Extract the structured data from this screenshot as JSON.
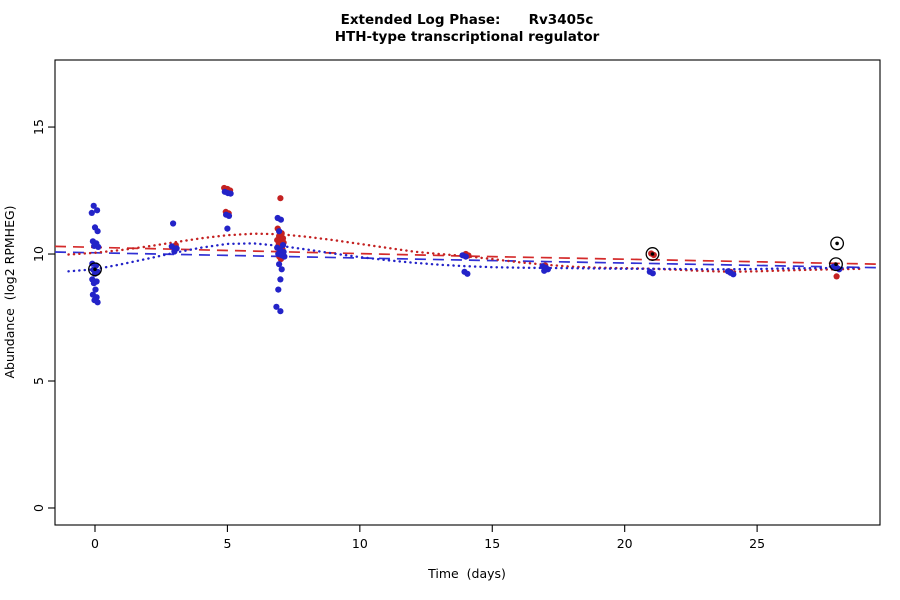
{
  "chart_data": {
    "type": "scatter",
    "title": "Extended Log Phase:      Rv3405c",
    "subtitle": "HTH-type transcriptional regulator",
    "xlabel": "Time  (days)",
    "ylabel": "Abundance  (log2 RPMHEG)",
    "xlim": [
      -1.51,
      29.64
    ],
    "ylim": [
      -0.67,
      17.64
    ],
    "xticks": [
      0,
      5,
      10,
      15,
      20,
      25
    ],
    "yticks": [
      0,
      5,
      10,
      15
    ],
    "grid": false,
    "legend": "none",
    "colors": {
      "red": "#C42121",
      "blue": "#2323C8",
      "outlier": "#000000"
    },
    "series": [
      {
        "name": "red",
        "color": "#C42121",
        "points": [
          [
            3.05,
            10.35
          ],
          [
            4.88,
            12.6
          ],
          [
            5.0,
            12.56
          ],
          [
            5.1,
            12.5
          ],
          [
            4.94,
            11.66
          ],
          [
            5.05,
            11.6
          ],
          [
            7.0,
            12.2
          ],
          [
            6.9,
            11.0
          ],
          [
            7.05,
            10.82
          ],
          [
            6.95,
            10.7
          ],
          [
            7.1,
            10.62
          ],
          [
            6.88,
            10.55
          ],
          [
            7.0,
            10.5
          ],
          [
            7.12,
            10.45
          ],
          [
            6.94,
            10.38
          ],
          [
            7.04,
            10.3
          ],
          [
            6.9,
            10.24
          ],
          [
            7.08,
            10.18
          ],
          [
            6.96,
            9.9
          ],
          [
            7.02,
            9.8
          ],
          [
            14.0,
            10.0
          ],
          [
            14.1,
            9.94
          ],
          [
            17.0,
            9.55
          ],
          [
            21.0,
            10.02
          ],
          [
            21.1,
            9.96
          ],
          [
            24.0,
            9.3
          ],
          [
            28.0,
            9.12
          ],
          [
            27.95,
            9.56
          ]
        ]
      },
      {
        "name": "blue",
        "color": "#2323C8",
        "points": [
          [
            -0.05,
            11.9
          ],
          [
            0.08,
            11.72
          ],
          [
            -0.12,
            11.62
          ],
          [
            0.0,
            11.05
          ],
          [
            0.1,
            10.9
          ],
          [
            -0.08,
            10.5
          ],
          [
            0.05,
            10.42
          ],
          [
            -0.03,
            10.32
          ],
          [
            0.12,
            10.28
          ],
          [
            -0.1,
            9.62
          ],
          [
            0.04,
            9.55
          ],
          [
            -0.06,
            9.38
          ],
          [
            0.1,
            9.3
          ],
          [
            0.0,
            9.22
          ],
          [
            -0.1,
            9.0
          ],
          [
            0.06,
            8.92
          ],
          [
            -0.04,
            8.85
          ],
          [
            0.02,
            8.6
          ],
          [
            -0.08,
            8.4
          ],
          [
            0.06,
            8.3
          ],
          [
            -0.02,
            8.18
          ],
          [
            0.1,
            8.1
          ],
          [
            2.95,
            11.2
          ],
          [
            2.9,
            10.3
          ],
          [
            3.08,
            10.22
          ],
          [
            3.0,
            10.1
          ],
          [
            4.9,
            12.45
          ],
          [
            5.02,
            12.4
          ],
          [
            5.12,
            12.38
          ],
          [
            4.95,
            11.55
          ],
          [
            5.06,
            11.5
          ],
          [
            5.0,
            11.0
          ],
          [
            6.9,
            11.42
          ],
          [
            7.02,
            11.35
          ],
          [
            6.95,
            10.9
          ],
          [
            7.1,
            10.35
          ],
          [
            6.88,
            10.25
          ],
          [
            7.0,
            10.15
          ],
          [
            7.12,
            10.08
          ],
          [
            6.92,
            10.0
          ],
          [
            7.05,
            9.95
          ],
          [
            7.15,
            9.9
          ],
          [
            6.95,
            9.6
          ],
          [
            7.05,
            9.4
          ],
          [
            7.0,
            9.0
          ],
          [
            6.92,
            8.6
          ],
          [
            6.85,
            7.92
          ],
          [
            7.0,
            7.75
          ],
          [
            13.88,
            9.95
          ],
          [
            14.0,
            9.9
          ],
          [
            13.95,
            9.3
          ],
          [
            14.06,
            9.22
          ],
          [
            16.9,
            9.52
          ],
          [
            17.02,
            9.46
          ],
          [
            17.1,
            9.4
          ],
          [
            16.96,
            9.34
          ],
          [
            20.95,
            9.3
          ],
          [
            21.06,
            9.24
          ],
          [
            23.9,
            9.32
          ],
          [
            24.0,
            9.26
          ],
          [
            24.1,
            9.2
          ],
          [
            27.88,
            9.5
          ],
          [
            28.0,
            9.46
          ],
          [
            28.1,
            9.4
          ]
        ]
      }
    ],
    "outlier_markers": {
      "color": "#000000",
      "points": [
        [
          0.0,
          9.4
        ],
        [
          21.05,
          10.0
        ],
        [
          28.02,
          10.42
        ],
        [
          27.98,
          9.6
        ]
      ]
    },
    "trend_lines": [
      {
        "name": "red-linear",
        "color": "#D42A2A",
        "style": "longdash",
        "points": [
          [
            -1.51,
            10.3
          ],
          [
            14.0,
            9.92
          ],
          [
            29.64,
            9.6
          ]
        ]
      },
      {
        "name": "blue-linear",
        "color": "#3030D4",
        "style": "longdash",
        "points": [
          [
            -1.51,
            10.08
          ],
          [
            14.0,
            9.76
          ],
          [
            29.64,
            9.46
          ]
        ]
      },
      {
        "name": "red-loess",
        "color": "#C42121",
        "style": "dotted",
        "points": [
          [
            -1.0,
            9.98
          ],
          [
            0,
            10.05
          ],
          [
            1,
            10.16
          ],
          [
            2,
            10.3
          ],
          [
            3,
            10.46
          ],
          [
            4,
            10.62
          ],
          [
            5,
            10.74
          ],
          [
            6,
            10.8
          ],
          [
            7,
            10.78
          ],
          [
            8,
            10.68
          ],
          [
            9,
            10.55
          ],
          [
            10,
            10.4
          ],
          [
            11,
            10.25
          ],
          [
            12,
            10.1
          ],
          [
            13,
            10.0
          ],
          [
            14,
            9.92
          ],
          [
            15,
            9.8
          ],
          [
            16,
            9.68
          ],
          [
            17,
            9.58
          ],
          [
            18,
            9.5
          ],
          [
            19,
            9.46
          ],
          [
            20,
            9.44
          ],
          [
            21,
            9.42
          ],
          [
            22,
            9.38
          ],
          [
            23,
            9.33
          ],
          [
            24,
            9.3
          ],
          [
            25,
            9.32
          ],
          [
            26,
            9.35
          ],
          [
            27,
            9.38
          ],
          [
            28,
            9.4
          ],
          [
            29,
            9.42
          ]
        ]
      },
      {
        "name": "blue-loess",
        "color": "#2323C8",
        "style": "dotted",
        "points": [
          [
            -1.0,
            9.32
          ],
          [
            0,
            9.4
          ],
          [
            1,
            9.6
          ],
          [
            2,
            9.82
          ],
          [
            3,
            10.05
          ],
          [
            4,
            10.25
          ],
          [
            5,
            10.4
          ],
          [
            6,
            10.42
          ],
          [
            7,
            10.32
          ],
          [
            8,
            10.18
          ],
          [
            9,
            10.02
          ],
          [
            10,
            9.88
          ],
          [
            11,
            9.76
          ],
          [
            12,
            9.66
          ],
          [
            13,
            9.58
          ],
          [
            14,
            9.52
          ],
          [
            15,
            9.48
          ],
          [
            16,
            9.46
          ],
          [
            17,
            9.45
          ],
          [
            18,
            9.44
          ],
          [
            19,
            9.43
          ],
          [
            20,
            9.42
          ],
          [
            21,
            9.42
          ],
          [
            22,
            9.41
          ],
          [
            23,
            9.4
          ],
          [
            24,
            9.4
          ],
          [
            25,
            9.41
          ],
          [
            26,
            9.43
          ],
          [
            27,
            9.44
          ],
          [
            28,
            9.45
          ],
          [
            29,
            9.46
          ]
        ]
      }
    ]
  }
}
